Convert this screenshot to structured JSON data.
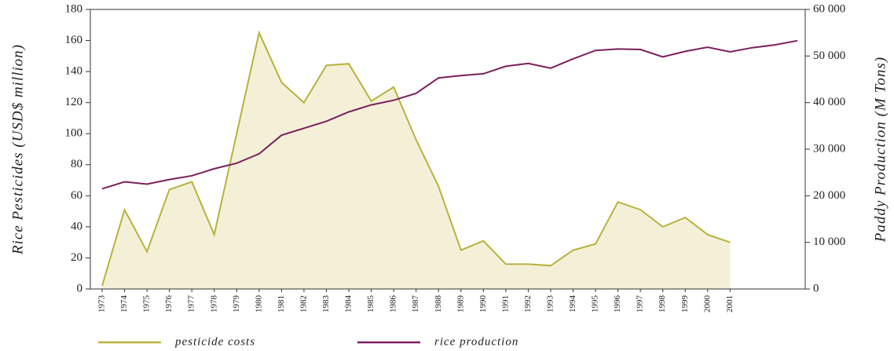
{
  "chart_data": {
    "type": "line",
    "categories": [
      "1973",
      "1974",
      "1975",
      "1976",
      "1977",
      "1978",
      "1979",
      "1980",
      "1981",
      "1982",
      "1983",
      "1984",
      "1985",
      "1986",
      "1987",
      "1988",
      "1989",
      "1990",
      "1991",
      "1992",
      "1993",
      "1994",
      "1995",
      "1996",
      "1997",
      "1998",
      "1999",
      "2000",
      "2001",
      null,
      null,
      null
    ],
    "y_label": "Rice Pesticides (USD$ million)",
    "y2_label": "Paddy Production (M Tons)",
    "series": [
      {
        "name": "pesticide costs",
        "color": "#b8b23c",
        "fill": "#f4f0d8",
        "values": [
          2,
          51,
          24,
          64,
          69,
          35,
          100,
          165,
          133,
          120,
          144,
          145,
          121,
          130,
          96,
          66,
          25,
          31,
          16,
          16,
          15,
          25,
          29,
          56,
          51,
          40,
          46,
          35,
          30,
          null,
          null,
          null
        ]
      },
      {
        "name": "rice production",
        "color": "#7b1f5c",
        "axis": "y2",
        "values": [
          21500,
          23000,
          22500,
          23500,
          24300,
          25800,
          27000,
          29000,
          33000,
          34500,
          36000,
          38000,
          39500,
          40500,
          42000,
          45300,
          45800,
          46200,
          47800,
          48400,
          47400,
          49400,
          51200,
          51500,
          51400,
          49800,
          51000,
          51900,
          50900,
          51800,
          52400,
          53300
        ]
      }
    ],
    "ylim": [
      0,
      180
    ],
    "yticks": [
      0,
      20,
      40,
      60,
      80,
      100,
      120,
      140,
      160,
      180
    ],
    "y2lim": [
      0,
      60000
    ],
    "y2ticks": [
      0,
      {
        "value": 10000,
        "label": "10 000"
      },
      {
        "value": 20000,
        "label": "20 000"
      },
      {
        "value": 30000,
        "label": "30 000"
      },
      {
        "value": 40000,
        "label": "40 000"
      },
      {
        "value": 50000,
        "label": "50 000"
      },
      {
        "value": 60000,
        "label": "60 000"
      }
    ]
  }
}
